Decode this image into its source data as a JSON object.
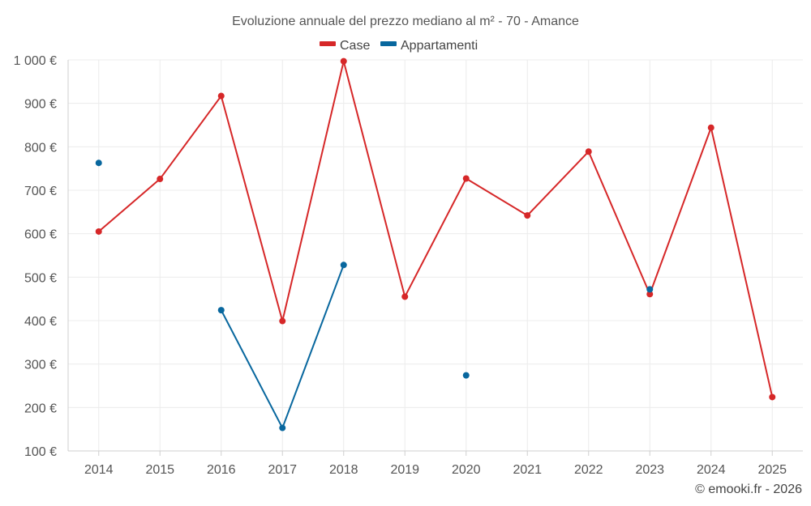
{
  "chart_data": {
    "type": "line",
    "title": "Evoluzione annuale del prezzo mediano al m² - 70 - Amance",
    "categories": [
      "2014",
      "2015",
      "2016",
      "2017",
      "2018",
      "2019",
      "2020",
      "2021",
      "2022",
      "2023",
      "2024",
      "2025"
    ],
    "ylim": [
      100,
      1000
    ],
    "yticks": [
      100,
      200,
      300,
      400,
      500,
      600,
      700,
      800,
      900,
      1000
    ],
    "ytick_labels": [
      "100 €",
      "200 €",
      "300 €",
      "400 €",
      "500 €",
      "600 €",
      "700 €",
      "800 €",
      "900 €",
      "1 000 €"
    ],
    "grid": true,
    "legend_position": "top-center",
    "series": [
      {
        "name": "Case",
        "color": "#d62728",
        "values": [
          605,
          726,
          917,
          399,
          997,
          455,
          727,
          642,
          789,
          461,
          844,
          224
        ]
      },
      {
        "name": "Appartamenti",
        "color": "#08679e",
        "values": [
          763,
          null,
          424,
          153,
          528,
          null,
          274,
          null,
          null,
          472,
          null,
          null
        ]
      }
    ]
  },
  "copyright": "© emooki.fr - 2026"
}
